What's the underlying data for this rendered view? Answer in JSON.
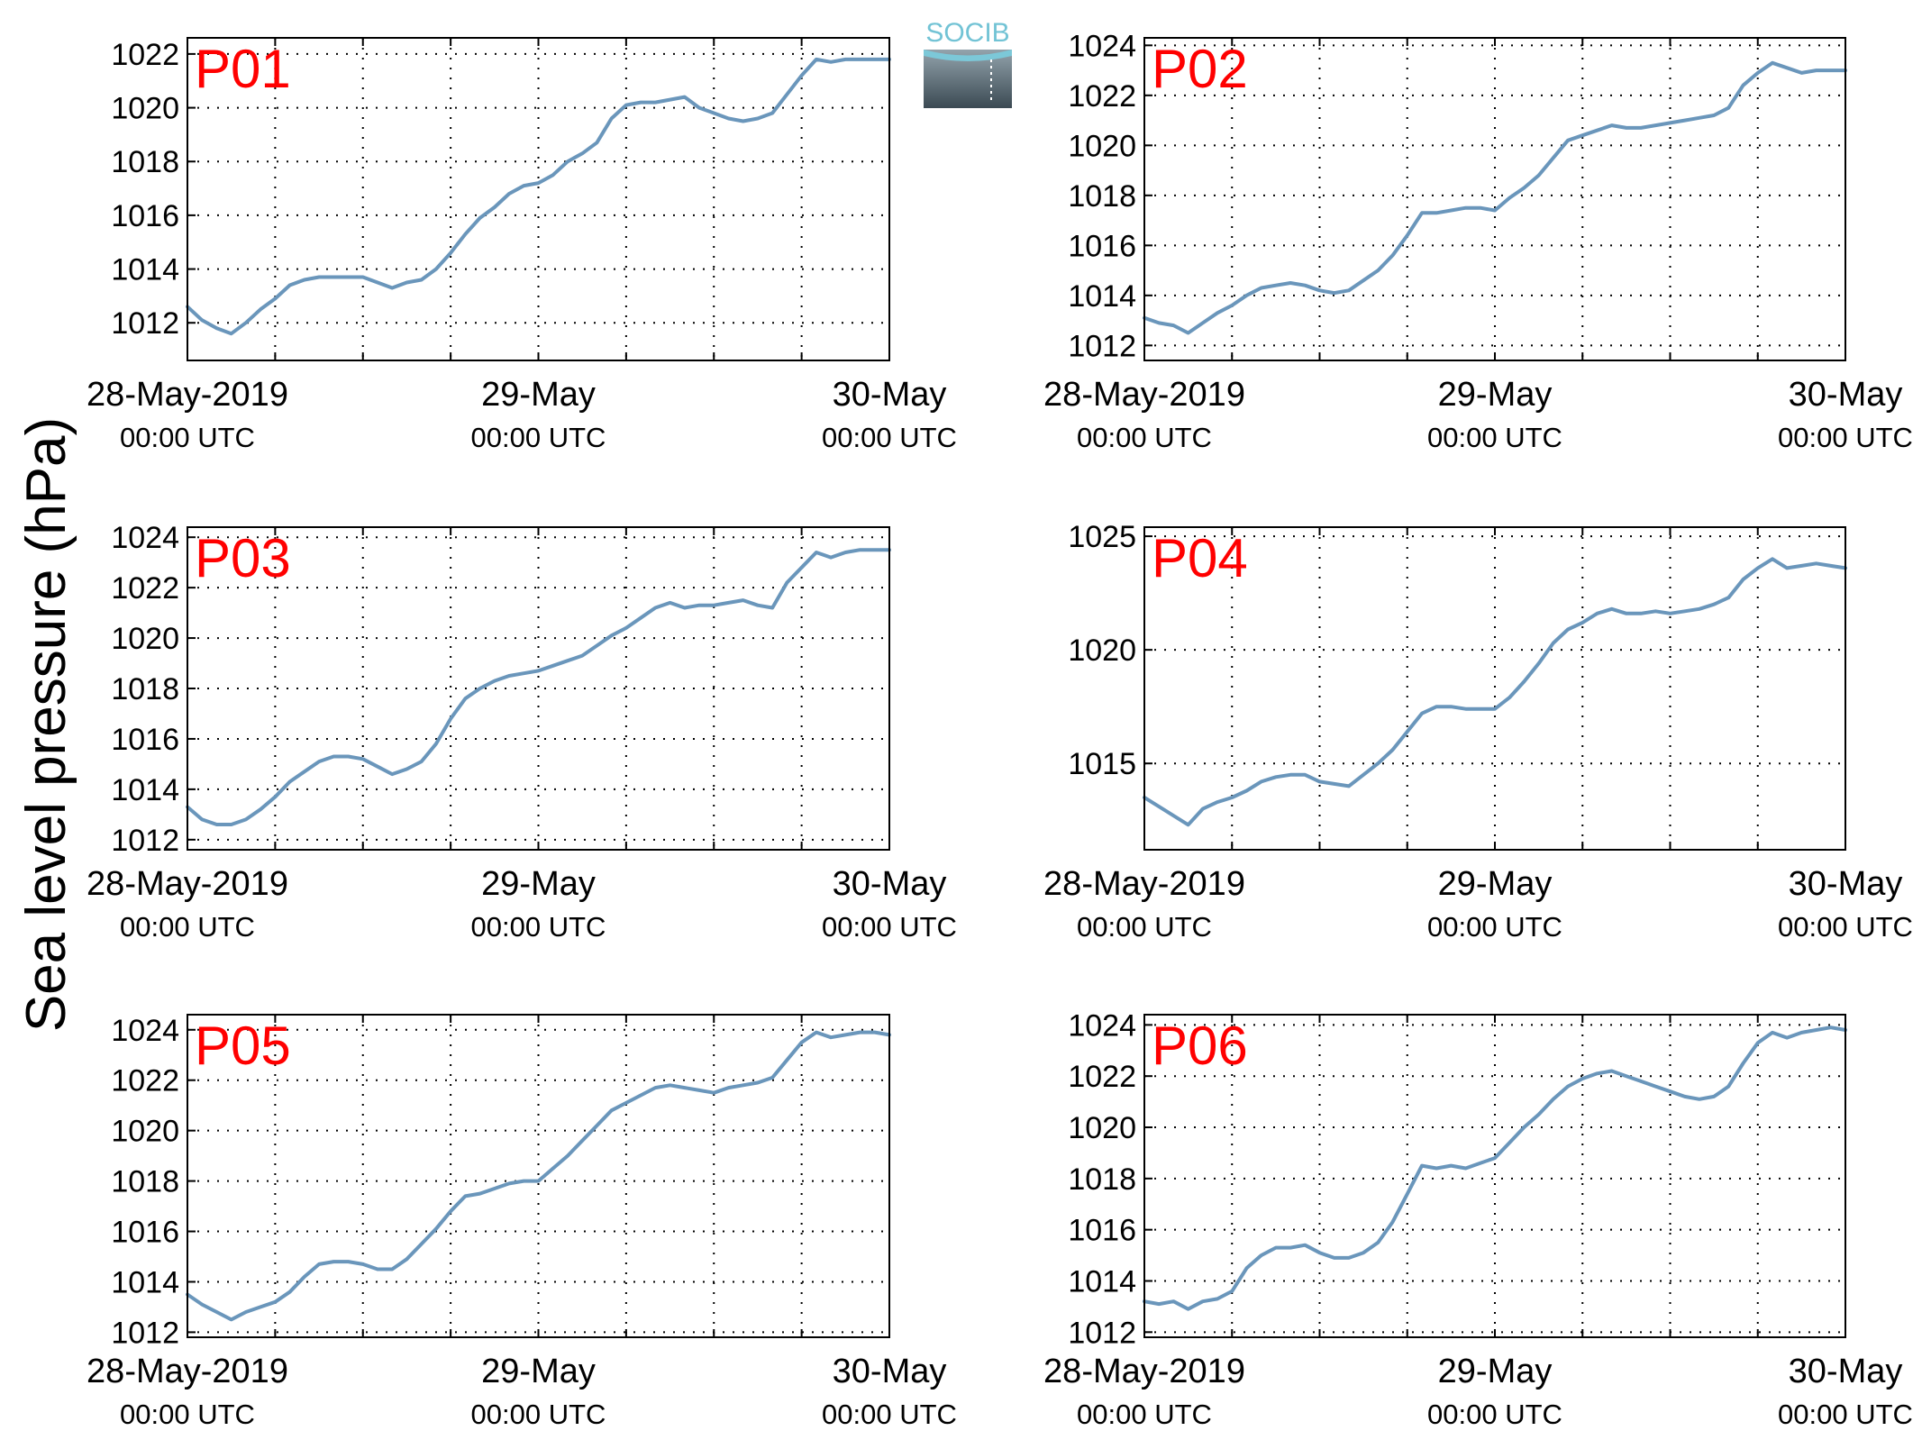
{
  "figure": {
    "ylabel": "Sea level pressure (hPa)",
    "logo_text": "SOCIB",
    "line_color": "#6a96bb",
    "panel_label_color": "#ff0000",
    "x_tick_dates": [
      "28-May-2019",
      "29-May",
      "30-May"
    ],
    "x_tick_times": [
      "00:00 UTC",
      "00:00 UTC",
      "00:00 UTC"
    ]
  },
  "chart_data": [
    {
      "type": "line",
      "label": "P01",
      "xlim": [
        0,
        48
      ],
      "ylim": [
        1010.6,
        1022.6
      ],
      "yticks": [
        1012,
        1014,
        1016,
        1018,
        1020,
        1022
      ],
      "xgrid_hours": [
        6,
        12,
        18,
        24,
        30,
        36,
        42
      ],
      "x_hours": [
        0,
        1,
        2,
        3,
        4,
        5,
        6,
        7,
        8,
        9,
        10,
        11,
        12,
        13,
        14,
        15,
        16,
        17,
        18,
        19,
        20,
        21,
        22,
        23,
        24,
        25,
        26,
        27,
        28,
        29,
        30,
        31,
        32,
        33,
        34,
        35,
        36,
        37,
        38,
        39,
        40,
        41,
        42,
        43,
        44,
        45,
        46,
        47,
        48
      ],
      "y": [
        1012.6,
        1012.1,
        1011.8,
        1011.6,
        1012.0,
        1012.5,
        1012.9,
        1013.4,
        1013.6,
        1013.7,
        1013.7,
        1013.7,
        1013.7,
        1013.5,
        1013.3,
        1013.5,
        1013.6,
        1014.0,
        1014.6,
        1015.3,
        1015.9,
        1016.3,
        1016.8,
        1017.1,
        1017.2,
        1017.5,
        1018.0,
        1018.3,
        1018.7,
        1019.6,
        1020.1,
        1020.2,
        1020.2,
        1020.3,
        1020.4,
        1020.0,
        1019.8,
        1019.6,
        1019.5,
        1019.6,
        1019.8,
        1020.5,
        1021.2,
        1021.8,
        1021.7,
        1021.8,
        1021.8,
        1021.8,
        1021.8
      ]
    },
    {
      "type": "line",
      "label": "P02",
      "xlim": [
        0,
        48
      ],
      "ylim": [
        1011.4,
        1024.3
      ],
      "yticks": [
        1012,
        1014,
        1016,
        1018,
        1020,
        1022,
        1024
      ],
      "xgrid_hours": [
        6,
        12,
        18,
        24,
        30,
        36,
        42
      ],
      "x_hours": [
        0,
        1,
        2,
        3,
        4,
        5,
        6,
        7,
        8,
        9,
        10,
        11,
        12,
        13,
        14,
        15,
        16,
        17,
        18,
        19,
        20,
        21,
        22,
        23,
        24,
        25,
        26,
        27,
        28,
        29,
        30,
        31,
        32,
        33,
        34,
        35,
        36,
        37,
        38,
        39,
        40,
        41,
        42,
        43,
        44,
        45,
        46,
        47,
        48
      ],
      "y": [
        1013.1,
        1012.9,
        1012.8,
        1012.5,
        1012.9,
        1013.3,
        1013.6,
        1014.0,
        1014.3,
        1014.4,
        1014.5,
        1014.4,
        1014.2,
        1014.1,
        1014.2,
        1014.6,
        1015.0,
        1015.6,
        1016.4,
        1017.3,
        1017.3,
        1017.4,
        1017.5,
        1017.5,
        1017.4,
        1017.9,
        1018.3,
        1018.8,
        1019.5,
        1020.2,
        1020.4,
        1020.6,
        1020.8,
        1020.7,
        1020.7,
        1020.8,
        1020.9,
        1021.0,
        1021.1,
        1021.2,
        1021.5,
        1022.4,
        1022.9,
        1023.3,
        1023.1,
        1022.9,
        1023.0,
        1023.0,
        1023.0
      ]
    },
    {
      "type": "line",
      "label": "P03",
      "xlim": [
        0,
        48
      ],
      "ylim": [
        1011.6,
        1024.4
      ],
      "yticks": [
        1012,
        1014,
        1016,
        1018,
        1020,
        1022,
        1024
      ],
      "xgrid_hours": [
        6,
        12,
        18,
        24,
        30,
        36,
        42
      ],
      "x_hours": [
        0,
        1,
        2,
        3,
        4,
        5,
        6,
        7,
        8,
        9,
        10,
        11,
        12,
        13,
        14,
        15,
        16,
        17,
        18,
        19,
        20,
        21,
        22,
        23,
        24,
        25,
        26,
        27,
        28,
        29,
        30,
        31,
        32,
        33,
        34,
        35,
        36,
        37,
        38,
        39,
        40,
        41,
        42,
        43,
        44,
        45,
        46,
        47,
        48
      ],
      "y": [
        1013.3,
        1012.8,
        1012.6,
        1012.6,
        1012.8,
        1013.2,
        1013.7,
        1014.3,
        1014.7,
        1015.1,
        1015.3,
        1015.3,
        1015.2,
        1014.9,
        1014.6,
        1014.8,
        1015.1,
        1015.8,
        1016.8,
        1017.6,
        1018.0,
        1018.3,
        1018.5,
        1018.6,
        1018.7,
        1018.9,
        1019.1,
        1019.3,
        1019.7,
        1020.1,
        1020.4,
        1020.8,
        1021.2,
        1021.4,
        1021.2,
        1021.3,
        1021.3,
        1021.4,
        1021.5,
        1021.3,
        1021.2,
        1022.2,
        1022.8,
        1023.4,
        1023.2,
        1023.4,
        1023.5,
        1023.5,
        1023.5
      ]
    },
    {
      "type": "line",
      "label": "P04",
      "xlim": [
        0,
        48
      ],
      "ylim": [
        1011.2,
        1025.4
      ],
      "yticks": [
        1015,
        1020,
        1025
      ],
      "xgrid_hours": [
        6,
        12,
        18,
        24,
        30,
        36,
        42
      ],
      "x_hours": [
        0,
        1,
        2,
        3,
        4,
        5,
        6,
        7,
        8,
        9,
        10,
        11,
        12,
        13,
        14,
        15,
        16,
        17,
        18,
        19,
        20,
        21,
        22,
        23,
        24,
        25,
        26,
        27,
        28,
        29,
        30,
        31,
        32,
        33,
        34,
        35,
        36,
        37,
        38,
        39,
        40,
        41,
        42,
        43,
        44,
        45,
        46,
        47,
        48
      ],
      "y": [
        1013.5,
        1013.1,
        1012.7,
        1012.3,
        1013.0,
        1013.3,
        1013.5,
        1013.8,
        1014.2,
        1014.4,
        1014.5,
        1014.5,
        1014.2,
        1014.1,
        1014.0,
        1014.5,
        1015.0,
        1015.6,
        1016.4,
        1017.2,
        1017.5,
        1017.5,
        1017.4,
        1017.4,
        1017.4,
        1017.9,
        1018.6,
        1019.4,
        1020.3,
        1020.9,
        1021.2,
        1021.6,
        1021.8,
        1021.6,
        1021.6,
        1021.7,
        1021.6,
        1021.7,
        1021.8,
        1022.0,
        1022.3,
        1023.1,
        1023.6,
        1024.0,
        1023.6,
        1023.7,
        1023.8,
        1023.7,
        1023.6
      ]
    },
    {
      "type": "line",
      "label": "P05",
      "xlim": [
        0,
        48
      ],
      "ylim": [
        1011.8,
        1024.6
      ],
      "yticks": [
        1012,
        1014,
        1016,
        1018,
        1020,
        1022,
        1024
      ],
      "xgrid_hours": [
        6,
        12,
        18,
        24,
        30,
        36,
        42
      ],
      "x_hours": [
        0,
        1,
        2,
        3,
        4,
        5,
        6,
        7,
        8,
        9,
        10,
        11,
        12,
        13,
        14,
        15,
        16,
        17,
        18,
        19,
        20,
        21,
        22,
        23,
        24,
        25,
        26,
        27,
        28,
        29,
        30,
        31,
        32,
        33,
        34,
        35,
        36,
        37,
        38,
        39,
        40,
        41,
        42,
        43,
        44,
        45,
        46,
        47,
        48
      ],
      "y": [
        1013.5,
        1013.1,
        1012.8,
        1012.5,
        1012.8,
        1013.0,
        1013.2,
        1013.6,
        1014.2,
        1014.7,
        1014.8,
        1014.8,
        1014.7,
        1014.5,
        1014.5,
        1014.9,
        1015.5,
        1016.1,
        1016.8,
        1017.4,
        1017.5,
        1017.7,
        1017.9,
        1018.0,
        1018.0,
        1018.5,
        1019.0,
        1019.6,
        1020.2,
        1020.8,
        1021.1,
        1021.4,
        1021.7,
        1021.8,
        1021.7,
        1021.6,
        1021.5,
        1021.7,
        1021.8,
        1021.9,
        1022.1,
        1022.8,
        1023.5,
        1023.9,
        1023.7,
        1023.8,
        1023.9,
        1023.9,
        1023.8
      ]
    },
    {
      "type": "line",
      "label": "P06",
      "xlim": [
        0,
        48
      ],
      "ylim": [
        1011.8,
        1024.4
      ],
      "yticks": [
        1012,
        1014,
        1016,
        1018,
        1020,
        1022,
        1024
      ],
      "xgrid_hours": [
        6,
        12,
        18,
        24,
        30,
        36,
        42
      ],
      "x_hours": [
        0,
        1,
        2,
        3,
        4,
        5,
        6,
        7,
        8,
        9,
        10,
        11,
        12,
        13,
        14,
        15,
        16,
        17,
        18,
        19,
        20,
        21,
        22,
        23,
        24,
        25,
        26,
        27,
        28,
        29,
        30,
        31,
        32,
        33,
        34,
        35,
        36,
        37,
        38,
        39,
        40,
        41,
        42,
        43,
        44,
        45,
        46,
        47,
        48
      ],
      "y": [
        1013.2,
        1013.1,
        1013.2,
        1012.9,
        1013.2,
        1013.3,
        1013.6,
        1014.5,
        1015.0,
        1015.3,
        1015.3,
        1015.4,
        1015.1,
        1014.9,
        1014.9,
        1015.1,
        1015.5,
        1016.3,
        1017.4,
        1018.5,
        1018.4,
        1018.5,
        1018.4,
        1018.6,
        1018.8,
        1019.4,
        1020.0,
        1020.5,
        1021.1,
        1021.6,
        1021.9,
        1022.1,
        1022.2,
        1022.0,
        1021.8,
        1021.6,
        1021.4,
        1021.2,
        1021.1,
        1021.2,
        1021.6,
        1022.5,
        1023.3,
        1023.7,
        1023.5,
        1023.7,
        1023.8,
        1023.9,
        1023.8
      ]
    }
  ]
}
